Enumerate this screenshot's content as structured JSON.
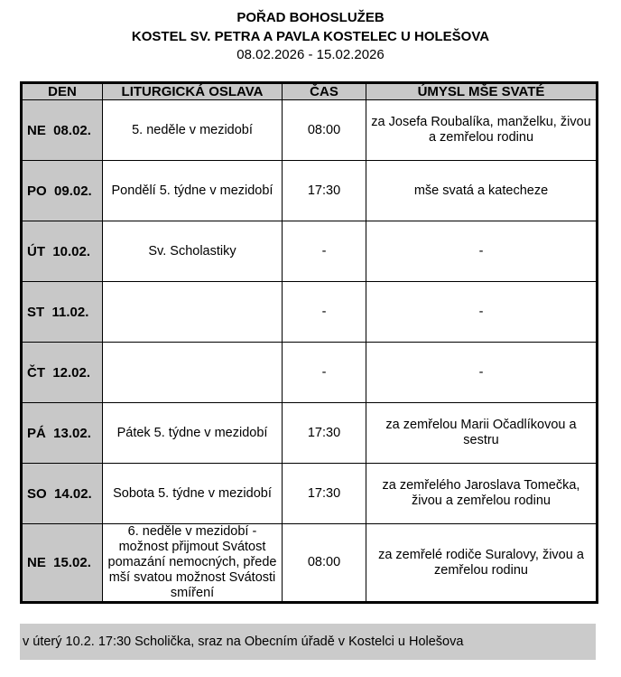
{
  "header": {
    "title": "POŘAD BOHOSLUŽEB",
    "church": "KOSTEL SV. PETRA A PAVLA KOSTELEC U HOLEŠOVA",
    "dates": "08.02.2026 - 15.02.2026"
  },
  "columns": [
    "DEN",
    "LITURGICKÁ OSLAVA",
    "ČAS",
    "ÚMYSL MŠE SVATÉ"
  ],
  "rows": [
    {
      "day": "NE  08.02.",
      "celebration": "5. neděle v mezidobí",
      "time": "08:00",
      "intention": "za Josefa Roubalíka, manželku, živou a zemřelou rodinu"
    },
    {
      "day": "PO  09.02.",
      "celebration": "Pondělí 5. týdne v mezidobí",
      "time": "17:30",
      "intention": "mše svatá a katecheze"
    },
    {
      "day": "ÚT  10.02.",
      "celebration": "Sv. Scholastiky",
      "time": "-",
      "intention": "-"
    },
    {
      "day": "ST  11.02.",
      "celebration": "",
      "time": "-",
      "intention": "-"
    },
    {
      "day": "ČT  12.02.",
      "celebration": "",
      "time": "-",
      "intention": "-"
    },
    {
      "day": "PÁ  13.02.",
      "celebration": "Pátek 5. týdne v mezidobí",
      "time": "17:30",
      "intention": "za zemřelou Marii Očadlíkovou a sestru"
    },
    {
      "day": "SO  14.02.",
      "celebration": "Sobota 5. týdne v mezidobí",
      "time": "17:30",
      "intention": "za zemřelého Jaroslava Tomečka, živou a zemřelou rodinu"
    },
    {
      "day": "NE  15.02.",
      "celebration": "6. neděle v mezidobí - možnost přijmout Svátost pomazání nemocných, přede mší svatou možnost Svátosti smíření",
      "time": "08:00",
      "intention": "za zemřelé rodiče Suralovy, živou a zemřelou rodinu"
    }
  ],
  "note": "v úterý 10.2. 17:30 Scholička, sraz na Obecním úřadě v Kostelci u Holešova"
}
